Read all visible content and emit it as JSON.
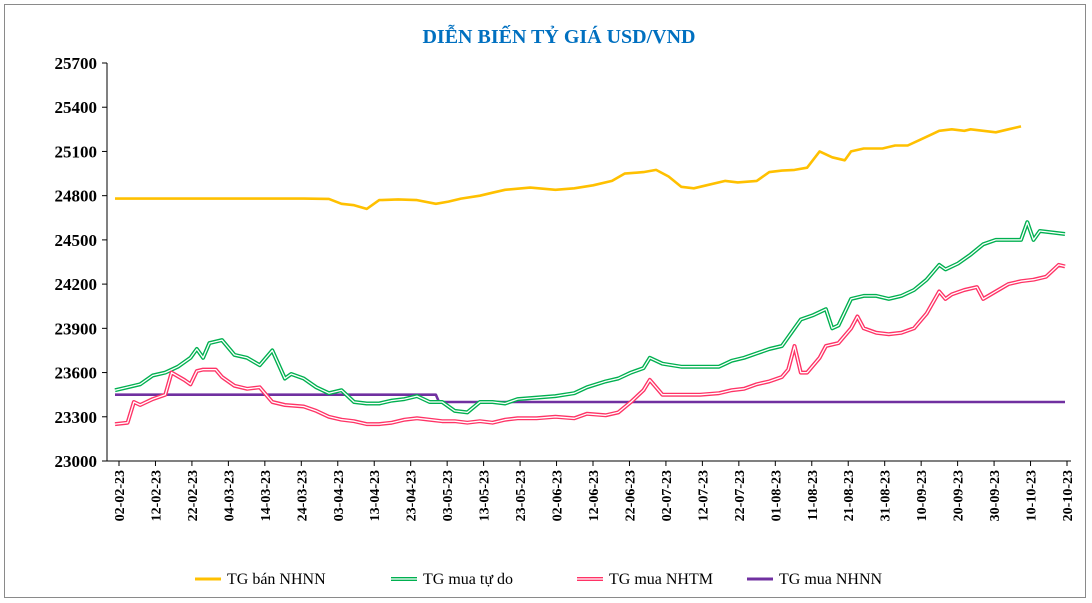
{
  "chart_data": {
    "type": "line",
    "title": "DIỄN BIẾN TỶ GIÁ USD/VND",
    "title_color": "#0070C0",
    "xlabel": "",
    "ylabel": "",
    "ylim": [
      23000,
      25700
    ],
    "yticks": [
      23000,
      23300,
      23600,
      23900,
      24200,
      24500,
      24800,
      25100,
      25400,
      25700
    ],
    "x_tick_labels": [
      "02-02-23",
      "12-02-23",
      "22-02-23",
      "04-03-23",
      "14-03-23",
      "24-03-23",
      "03-04-23",
      "13-04-23",
      "23-04-23",
      "03-05-23",
      "13-05-23",
      "23-05-23",
      "02-06-23",
      "12-06-23",
      "22-06-23",
      "02-07-23",
      "12-07-23",
      "22-07-23",
      "01-08-23",
      "11-08-23",
      "21-08-23",
      "31-08-23",
      "10-09-23",
      "20-09-23",
      "30-09-23",
      "10-10-23",
      "20-10-23"
    ],
    "x_day_range": [
      0,
      260
    ],
    "series": [
      {
        "name": "TG bán NHNN",
        "color": "#FFC000",
        "style": "solid",
        "points": [
          [
            0,
            24780
          ],
          [
            60,
            24780
          ],
          [
            68,
            24778
          ],
          [
            72,
            24745
          ],
          [
            76,
            24735
          ],
          [
            80,
            24710
          ],
          [
            84,
            24770
          ],
          [
            90,
            24775
          ],
          [
            96,
            24770
          ],
          [
            102,
            24745
          ],
          [
            106,
            24760
          ],
          [
            110,
            24780
          ],
          [
            116,
            24800
          ],
          [
            120,
            24820
          ],
          [
            124,
            24840
          ],
          [
            132,
            24855
          ],
          [
            140,
            24840
          ],
          [
            146,
            24850
          ],
          [
            152,
            24870
          ],
          [
            158,
            24900
          ],
          [
            162,
            24950
          ],
          [
            168,
            24960
          ],
          [
            172,
            24975
          ],
          [
            176,
            24930
          ],
          [
            180,
            24860
          ],
          [
            184,
            24850
          ],
          [
            188,
            24870
          ],
          [
            194,
            24900
          ],
          [
            198,
            24890
          ],
          [
            204,
            24900
          ],
          [
            208,
            24960
          ],
          [
            212,
            24970
          ],
          [
            216,
            24975
          ],
          [
            220,
            24990
          ],
          [
            224,
            25100
          ],
          [
            228,
            25060
          ],
          [
            232,
            25040
          ],
          [
            234,
            25100
          ],
          [
            238,
            25120
          ],
          [
            244,
            25120
          ],
          [
            248,
            25140
          ],
          [
            252,
            25140
          ],
          [
            256,
            25180
          ],
          [
            260,
            25220
          ],
          [
            262,
            25240
          ],
          [
            266,
            25250
          ],
          [
            270,
            25240
          ],
          [
            272,
            25250
          ],
          [
            276,
            25240
          ],
          [
            280,
            25230
          ],
          [
            284,
            25250
          ],
          [
            288,
            25270
          ]
        ]
      },
      {
        "name": "TG mua tự do",
        "color": "#00B050",
        "style": "double",
        "points": [
          [
            0,
            23480
          ],
          [
            4,
            23500
          ],
          [
            8,
            23520
          ],
          [
            12,
            23580
          ],
          [
            16,
            23600
          ],
          [
            20,
            23640
          ],
          [
            24,
            23700
          ],
          [
            26,
            23760
          ],
          [
            28,
            23700
          ],
          [
            30,
            23800
          ],
          [
            34,
            23820
          ],
          [
            38,
            23720
          ],
          [
            42,
            23700
          ],
          [
            46,
            23650
          ],
          [
            50,
            23750
          ],
          [
            54,
            23560
          ],
          [
            56,
            23590
          ],
          [
            60,
            23560
          ],
          [
            64,
            23500
          ],
          [
            68,
            23460
          ],
          [
            72,
            23480
          ],
          [
            76,
            23400
          ],
          [
            80,
            23390
          ],
          [
            84,
            23390
          ],
          [
            88,
            23410
          ],
          [
            92,
            23420
          ],
          [
            96,
            23440
          ],
          [
            100,
            23400
          ],
          [
            104,
            23400
          ],
          [
            108,
            23340
          ],
          [
            112,
            23330
          ],
          [
            116,
            23400
          ],
          [
            120,
            23400
          ],
          [
            124,
            23390
          ],
          [
            128,
            23420
          ],
          [
            134,
            23430
          ],
          [
            140,
            23440
          ],
          [
            146,
            23460
          ],
          [
            150,
            23500
          ],
          [
            156,
            23540
          ],
          [
            160,
            23560
          ],
          [
            164,
            23600
          ],
          [
            168,
            23630
          ],
          [
            170,
            23700
          ],
          [
            174,
            23660
          ],
          [
            180,
            23640
          ],
          [
            186,
            23640
          ],
          [
            192,
            23640
          ],
          [
            196,
            23680
          ],
          [
            200,
            23700
          ],
          [
            204,
            23730
          ],
          [
            208,
            23760
          ],
          [
            212,
            23780
          ],
          [
            216,
            23900
          ],
          [
            218,
            23960
          ],
          [
            222,
            23990
          ],
          [
            226,
            24030
          ],
          [
            228,
            23900
          ],
          [
            230,
            23920
          ],
          [
            234,
            24100
          ],
          [
            238,
            24120
          ],
          [
            242,
            24120
          ],
          [
            246,
            24100
          ],
          [
            250,
            24120
          ],
          [
            254,
            24160
          ],
          [
            258,
            24230
          ],
          [
            260,
            24280
          ],
          [
            262,
            24330
          ],
          [
            264,
            24300
          ],
          [
            268,
            24340
          ],
          [
            272,
            24400
          ],
          [
            276,
            24470
          ],
          [
            280,
            24500
          ],
          [
            284,
            24500
          ],
          [
            288,
            24500
          ],
          [
            290,
            24620
          ],
          [
            292,
            24500
          ],
          [
            294,
            24560
          ],
          [
            298,
            24550
          ],
          [
            302,
            24540
          ]
        ]
      },
      {
        "name": "TG mua NHTM",
        "color": "#FF3366",
        "style": "double",
        "points": [
          [
            0,
            23250
          ],
          [
            4,
            23260
          ],
          [
            6,
            23400
          ],
          [
            8,
            23380
          ],
          [
            12,
            23420
          ],
          [
            16,
            23450
          ],
          [
            18,
            23600
          ],
          [
            22,
            23550
          ],
          [
            24,
            23520
          ],
          [
            26,
            23610
          ],
          [
            28,
            23620
          ],
          [
            32,
            23620
          ],
          [
            34,
            23570
          ],
          [
            36,
            23540
          ],
          [
            38,
            23510
          ],
          [
            42,
            23490
          ],
          [
            46,
            23500
          ],
          [
            50,
            23400
          ],
          [
            54,
            23380
          ],
          [
            60,
            23370
          ],
          [
            64,
            23340
          ],
          [
            68,
            23300
          ],
          [
            72,
            23280
          ],
          [
            76,
            23270
          ],
          [
            80,
            23250
          ],
          [
            84,
            23250
          ],
          [
            88,
            23260
          ],
          [
            92,
            23280
          ],
          [
            96,
            23290
          ],
          [
            100,
            23280
          ],
          [
            104,
            23270
          ],
          [
            108,
            23270
          ],
          [
            112,
            23260
          ],
          [
            116,
            23270
          ],
          [
            120,
            23260
          ],
          [
            124,
            23280
          ],
          [
            128,
            23290
          ],
          [
            134,
            23290
          ],
          [
            140,
            23300
          ],
          [
            146,
            23290
          ],
          [
            150,
            23320
          ],
          [
            156,
            23310
          ],
          [
            160,
            23330
          ],
          [
            164,
            23400
          ],
          [
            168,
            23480
          ],
          [
            170,
            23550
          ],
          [
            174,
            23450
          ],
          [
            180,
            23450
          ],
          [
            186,
            23450
          ],
          [
            192,
            23460
          ],
          [
            196,
            23480
          ],
          [
            200,
            23490
          ],
          [
            204,
            23520
          ],
          [
            208,
            23540
          ],
          [
            212,
            23570
          ],
          [
            214,
            23620
          ],
          [
            216,
            23780
          ],
          [
            218,
            23600
          ],
          [
            220,
            23600
          ],
          [
            224,
            23700
          ],
          [
            226,
            23780
          ],
          [
            230,
            23800
          ],
          [
            234,
            23900
          ],
          [
            236,
            23980
          ],
          [
            238,
            23900
          ],
          [
            242,
            23870
          ],
          [
            246,
            23860
          ],
          [
            250,
            23870
          ],
          [
            254,
            23900
          ],
          [
            258,
            24000
          ],
          [
            262,
            24150
          ],
          [
            264,
            24100
          ],
          [
            266,
            24130
          ],
          [
            270,
            24160
          ],
          [
            274,
            24180
          ],
          [
            276,
            24100
          ],
          [
            280,
            24150
          ],
          [
            284,
            24200
          ],
          [
            288,
            24220
          ],
          [
            292,
            24230
          ],
          [
            296,
            24250
          ],
          [
            300,
            24330
          ],
          [
            302,
            24320
          ]
        ]
      },
      {
        "name": "TG mua NHNN",
        "color": "#7030A0",
        "style": "solid",
        "points": [
          [
            0,
            23450
          ],
          [
            102,
            23450
          ],
          [
            103,
            23400
          ],
          [
            302,
            23400
          ]
        ]
      }
    ],
    "legend": {
      "position": "bottom",
      "entries": [
        "TG bán NHNN",
        "TG mua tự do",
        "TG mua NHTM",
        "TG mua NHNN"
      ]
    }
  }
}
